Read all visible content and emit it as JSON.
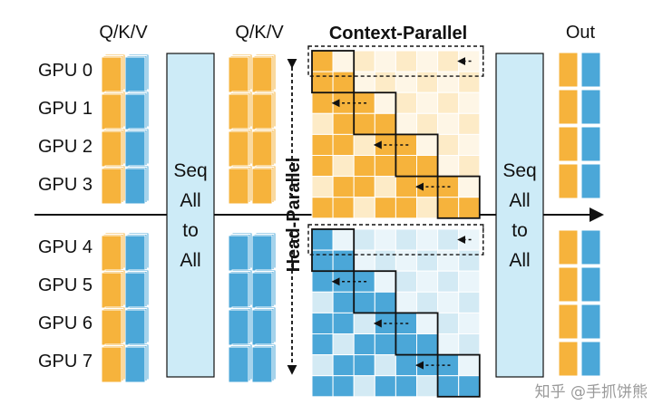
{
  "headers": {
    "qkv_left": "Q/K/V",
    "qkv_right": "Q/K/V",
    "out": "Out",
    "context_parallel": "Context-Parallel",
    "head_parallel": "Head-Parallel"
  },
  "gpus": [
    "GPU 0",
    "GPU 1",
    "GPU 2",
    "GPU 3",
    "GPU 4",
    "GPU 5",
    "GPU 6",
    "GPU 7"
  ],
  "all_to_all": [
    "Seq",
    "All",
    "to",
    "All"
  ],
  "watermark": "知乎 @手抓饼熊",
  "colors": {
    "orange": "#F6B33C",
    "orange_light": "#FDEBC7",
    "orange_pale": "#FEF6E6",
    "blue": "#4BA7D8",
    "blue_light": "#D3EAF4",
    "blue_pale": "#EAF5FA",
    "a2a_fill": "#CDEBF7",
    "stroke": "#111111"
  }
}
